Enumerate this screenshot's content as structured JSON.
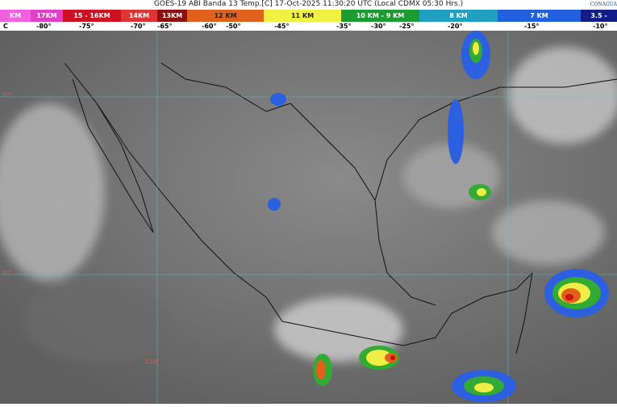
{
  "title": "GOES-19 ABI Banda 13 Temp.[C] 17-Oct-2025 11:30:20 UTC (Local CDMX  05:30 Hrs.)",
  "logo": "CONAGUA",
  "scale": [
    {
      "label": "KM",
      "color": "#f060e0"
    },
    {
      "label": "17KM",
      "color": "#e040c8"
    },
    {
      "label": "15 - 16KM",
      "color": "#cc1020"
    },
    {
      "label": "14KM",
      "color": "#e03434"
    },
    {
      "label": "13KM",
      "color": "#8c1010"
    },
    {
      "label": "12 KM",
      "color": "#e0601c"
    },
    {
      "label": "11 KM",
      "color": "#f0f040"
    },
    {
      "label": "10 KM -  9 KM",
      "color": "#1c9c30"
    },
    {
      "label": "8 KM",
      "color": "#20a0c0"
    },
    {
      "label": "7 KM",
      "color": "#2060e0"
    },
    {
      "label": "3.5 -",
      "color": "#101c88"
    }
  ],
  "temps": [
    "C",
    "-80°",
    "-75°",
    "-70°",
    "-65°",
    "-60°",
    "-50°",
    "-45°",
    "-35°",
    "-30°",
    "-25°",
    "-20°",
    "-15°",
    "-10°"
  ],
  "grid_labels": {
    "lat30": "30°",
    "lat20": "20°",
    "lon110": "-110°"
  }
}
